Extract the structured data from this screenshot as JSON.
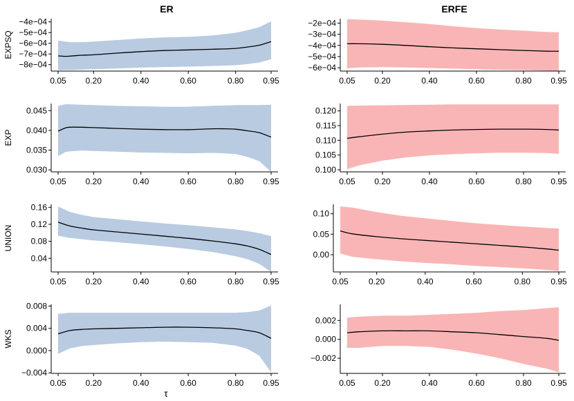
{
  "column_titles": [
    "ER",
    "ERFE"
  ],
  "x_axis_label": "τ",
  "colors": {
    "ER": "#b8cbe1",
    "ERFE": "#f9b5b5",
    "line": "#000000"
  },
  "chart_data": [
    {
      "type": "area",
      "column": "ER",
      "row": "EXPSQ",
      "ylabel": "EXPSQ",
      "xlim": [
        0.05,
        0.95
      ],
      "xticks": [
        0.05,
        0.2,
        0.4,
        0.6,
        0.8,
        0.95
      ],
      "xtick_labels": [
        "0.05",
        "0.20",
        "0.40",
        "0.60",
        "0.80",
        "0.95"
      ],
      "ylim": [
        -0.00086,
        -0.00037
      ],
      "yticks": [
        -0.0004,
        -0.0005,
        -0.0006,
        -0.0007,
        -0.0008
      ],
      "ytick_labels": [
        "−4e−04",
        "−5e−04",
        "−6e−04",
        "−7e−04",
        "−8e−04"
      ],
      "x": [
        0.05,
        0.08,
        0.1,
        0.15,
        0.2,
        0.3,
        0.4,
        0.5,
        0.6,
        0.7,
        0.8,
        0.85,
        0.9,
        0.95
      ],
      "mean": [
        -0.000718,
        -0.000722,
        -0.00072,
        -0.000712,
        -0.000708,
        -0.000692,
        -0.000678,
        -0.000668,
        -0.000662,
        -0.000656,
        -0.000648,
        -0.000635,
        -0.000618,
        -0.000585
      ],
      "lower": [
        -0.00085,
        -0.00085,
        -0.00085,
        -0.000845,
        -0.000842,
        -0.000835,
        -0.000828,
        -0.000822,
        -0.000818,
        -0.000812,
        -0.000805,
        -0.000795,
        -0.00078,
        -0.00075
      ],
      "upper": [
        -0.000575,
        -0.000585,
        -0.00059,
        -0.00059,
        -0.000585,
        -0.00057,
        -0.000555,
        -0.000545,
        -0.00054,
        -0.000528,
        -0.000502,
        -0.000478,
        -0.00045,
        -0.000395
      ]
    },
    {
      "type": "area",
      "column": "ERFE",
      "row": "EXPSQ",
      "ylabel": "",
      "xlim": [
        0.05,
        0.95
      ],
      "xticks": [
        0.05,
        0.2,
        0.4,
        0.6,
        0.8,
        0.95
      ],
      "xtick_labels": [
        "0.05",
        "0.20",
        "0.40",
        "0.60",
        "0.80",
        "0.95"
      ],
      "ylim": [
        -0.00063,
        -0.00016
      ],
      "yticks": [
        -0.0002,
        -0.0003,
        -0.0004,
        -0.0005,
        -0.0006
      ],
      "ytick_labels": [
        "−2e−04",
        "−3e−04",
        "−4e−04",
        "−5e−04",
        "−6e−04"
      ],
      "x": [
        0.05,
        0.1,
        0.2,
        0.3,
        0.4,
        0.5,
        0.6,
        0.7,
        0.8,
        0.9,
        0.95
      ],
      "mean": [
        -0.000385,
        -0.000385,
        -0.00039,
        -0.0004,
        -0.000412,
        -0.000422,
        -0.00043,
        -0.000438,
        -0.000445,
        -0.000452,
        -0.000452
      ],
      "lower": [
        -0.000605,
        -0.000598,
        -0.000595,
        -0.000597,
        -0.000602,
        -0.000608,
        -0.000613,
        -0.000618,
        -0.000621,
        -0.000626,
        -0.000627
      ],
      "upper": [
        -0.000165,
        -0.000168,
        -0.000178,
        -0.000193,
        -0.000208,
        -0.000228,
        -0.000245,
        -0.000258,
        -0.000268,
        -0.00028,
        -0.000282
      ]
    },
    {
      "type": "area",
      "column": "ER",
      "row": "EXP",
      "ylabel": "EXP",
      "xlim": [
        0.05,
        0.95
      ],
      "xticks": [
        0.05,
        0.2,
        0.4,
        0.6,
        0.8,
        0.95
      ],
      "xtick_labels": [
        "0.05",
        "0.20",
        "0.40",
        "0.60",
        "0.80",
        "0.95"
      ],
      "ylim": [
        0.0295,
        0.0468
      ],
      "yticks": [
        0.03,
        0.035,
        0.04,
        0.045
      ],
      "ytick_labels": [
        "0.030",
        "0.035",
        "0.040",
        "0.045"
      ],
      "x": [
        0.05,
        0.08,
        0.1,
        0.15,
        0.2,
        0.3,
        0.4,
        0.5,
        0.6,
        0.7,
        0.75,
        0.8,
        0.85,
        0.9,
        0.95
      ],
      "mean": [
        0.0398,
        0.0406,
        0.0408,
        0.0408,
        0.0407,
        0.0405,
        0.0403,
        0.0402,
        0.0402,
        0.0404,
        0.0404,
        0.0403,
        0.0399,
        0.0394,
        0.0383
      ],
      "lower": [
        0.0335,
        0.0345,
        0.0347,
        0.0349,
        0.0348,
        0.0346,
        0.0344,
        0.0343,
        0.0342,
        0.0343,
        0.0342,
        0.034,
        0.0333,
        0.0322,
        0.0295
      ],
      "upper": [
        0.0462,
        0.0466,
        0.0466,
        0.0465,
        0.0464,
        0.0462,
        0.0461,
        0.046,
        0.046,
        0.0462,
        0.0463,
        0.0464,
        0.0464,
        0.0464,
        0.0465
      ]
    },
    {
      "type": "area",
      "column": "ERFE",
      "row": "EXP",
      "ylabel": "",
      "xlim": [
        0.05,
        0.95
      ],
      "xticks": [
        0.05,
        0.2,
        0.4,
        0.6,
        0.8,
        0.95
      ],
      "xtick_labels": [
        "0.05",
        "0.20",
        "0.40",
        "0.60",
        "0.80",
        "0.95"
      ],
      "ylim": [
        0.0993,
        0.1225
      ],
      "yticks": [
        0.1,
        0.105,
        0.11,
        0.115,
        0.12
      ],
      "ytick_labels": [
        "0.100",
        "0.105",
        "0.110",
        "0.115",
        "0.120"
      ],
      "x": [
        0.05,
        0.1,
        0.2,
        0.3,
        0.4,
        0.5,
        0.6,
        0.7,
        0.8,
        0.9,
        0.95
      ],
      "mean": [
        0.1107,
        0.1112,
        0.1121,
        0.1128,
        0.1132,
        0.1135,
        0.1137,
        0.1138,
        0.1138,
        0.1137,
        0.1135
      ],
      "lower": [
        0.1002,
        0.1015,
        0.1031,
        0.1042,
        0.1049,
        0.1053,
        0.1056,
        0.1058,
        0.1058,
        0.1057,
        0.1054
      ],
      "upper": [
        0.1217,
        0.1218,
        0.1219,
        0.122,
        0.1221,
        0.1222,
        0.1222,
        0.1222,
        0.1222,
        0.1222,
        0.1222
      ]
    },
    {
      "type": "area",
      "column": "ER",
      "row": "UNION",
      "ylabel": "UNION",
      "xlim": [
        0.05,
        0.95
      ],
      "xticks": [
        0.05,
        0.2,
        0.4,
        0.6,
        0.8,
        0.95
      ],
      "xtick_labels": [
        "0.05",
        "0.20",
        "0.40",
        "0.60",
        "0.80",
        "0.95"
      ],
      "ylim": [
        0.008,
        0.167
      ],
      "yticks": [
        0.04,
        0.08,
        0.12,
        0.16
      ],
      "ytick_labels": [
        "0.04",
        "0.08",
        "0.12",
        "0.16"
      ],
      "x": [
        0.05,
        0.1,
        0.15,
        0.2,
        0.3,
        0.4,
        0.5,
        0.6,
        0.7,
        0.8,
        0.85,
        0.9,
        0.95
      ],
      "mean": [
        0.125,
        0.116,
        0.111,
        0.107,
        0.102,
        0.097,
        0.092,
        0.087,
        0.081,
        0.074,
        0.069,
        0.061,
        0.049
      ],
      "lower": [
        0.093,
        0.088,
        0.085,
        0.082,
        0.078,
        0.073,
        0.068,
        0.062,
        0.055,
        0.045,
        0.038,
        0.027,
        0.008
      ],
      "upper": [
        0.162,
        0.149,
        0.142,
        0.137,
        0.132,
        0.127,
        0.122,
        0.118,
        0.113,
        0.108,
        0.104,
        0.099,
        0.092
      ]
    },
    {
      "type": "area",
      "column": "ERFE",
      "row": "UNION",
      "ylabel": "",
      "xlim": [
        0.05,
        0.95
      ],
      "xticks": [
        0.05,
        0.2,
        0.4,
        0.6,
        0.8,
        0.95
      ],
      "xtick_labels": [
        "0.05",
        "0.20",
        "0.40",
        "0.60",
        "0.80",
        "0.95"
      ],
      "ylim": [
        -0.042,
        0.123
      ],
      "yticks": [
        0.0,
        0.05,
        0.1
      ],
      "ytick_labels": [
        "0.00",
        "0.05",
        "0.10"
      ],
      "x": [
        0.05,
        0.1,
        0.2,
        0.3,
        0.4,
        0.5,
        0.6,
        0.7,
        0.8,
        0.9,
        0.95
      ],
      "mean": [
        0.058,
        0.051,
        0.044,
        0.039,
        0.035,
        0.031,
        0.027,
        0.023,
        0.019,
        0.014,
        0.011
      ],
      "lower": [
        0.003,
        -0.005,
        -0.011,
        -0.016,
        -0.02,
        -0.023,
        -0.027,
        -0.03,
        -0.033,
        -0.037,
        -0.04
      ],
      "upper": [
        0.118,
        0.115,
        0.104,
        0.095,
        0.089,
        0.083,
        0.077,
        0.073,
        0.069,
        0.065,
        0.064
      ]
    },
    {
      "type": "area",
      "column": "ER",
      "row": "WKS",
      "ylabel": "WKS",
      "xlim": [
        0.05,
        0.95
      ],
      "xticks": [
        0.05,
        0.2,
        0.4,
        0.6,
        0.8,
        0.95
      ],
      "xtick_labels": [
        "0.05",
        "0.20",
        "0.40",
        "0.60",
        "0.80",
        "0.95"
      ],
      "ylim": [
        -0.0041,
        0.0083
      ],
      "yticks": [
        -0.004,
        0.0,
        0.004,
        0.008
      ],
      "ytick_labels": [
        "−0.004",
        "0.000",
        "0.004",
        "0.008"
      ],
      "x": [
        0.05,
        0.1,
        0.15,
        0.2,
        0.3,
        0.4,
        0.5,
        0.6,
        0.7,
        0.8,
        0.85,
        0.9,
        0.95
      ],
      "mean": [
        0.003,
        0.0036,
        0.0038,
        0.0039,
        0.004,
        0.0041,
        0.0042,
        0.0042,
        0.0041,
        0.0039,
        0.0036,
        0.0032,
        0.0022
      ],
      "lower": [
        -0.0006,
        0.0004,
        0.0008,
        0.001,
        0.0013,
        0.0015,
        0.0016,
        0.0015,
        0.0014,
        0.0009,
        0.0003,
        -0.0009,
        -0.0039
      ],
      "upper": [
        0.0066,
        0.0068,
        0.0068,
        0.0068,
        0.0068,
        0.0068,
        0.0068,
        0.0068,
        0.0068,
        0.0068,
        0.0069,
        0.0072,
        0.0081
      ]
    },
    {
      "type": "area",
      "column": "ERFE",
      "row": "WKS",
      "ylabel": "",
      "xlim": [
        0.05,
        0.95
      ],
      "xticks": [
        0.05,
        0.2,
        0.4,
        0.6,
        0.8,
        0.95
      ],
      "xtick_labels": [
        "0.05",
        "0.20",
        "0.40",
        "0.60",
        "0.80",
        "0.95"
      ],
      "ylim": [
        -0.0036,
        0.0037
      ],
      "yticks": [
        -0.002,
        0.0,
        0.002
      ],
      "ytick_labels": [
        "−0.002",
        "0.000",
        "0.002"
      ],
      "x": [
        0.05,
        0.1,
        0.2,
        0.3,
        0.4,
        0.5,
        0.6,
        0.7,
        0.8,
        0.9,
        0.95
      ],
      "mean": [
        0.0007,
        0.0008,
        0.0009,
        0.0009,
        0.0009,
        0.0008,
        0.0007,
        0.0005,
        0.0003,
        0.0001,
        -0.0001
      ],
      "lower": [
        -0.0009,
        -0.0009,
        -0.0007,
        -0.0007,
        -0.0008,
        -0.0011,
        -0.0015,
        -0.002,
        -0.0026,
        -0.0031,
        -0.0035
      ],
      "upper": [
        0.0023,
        0.0024,
        0.0025,
        0.0025,
        0.0026,
        0.0027,
        0.0028,
        0.003,
        0.0031,
        0.0033,
        0.0034
      ]
    }
  ]
}
